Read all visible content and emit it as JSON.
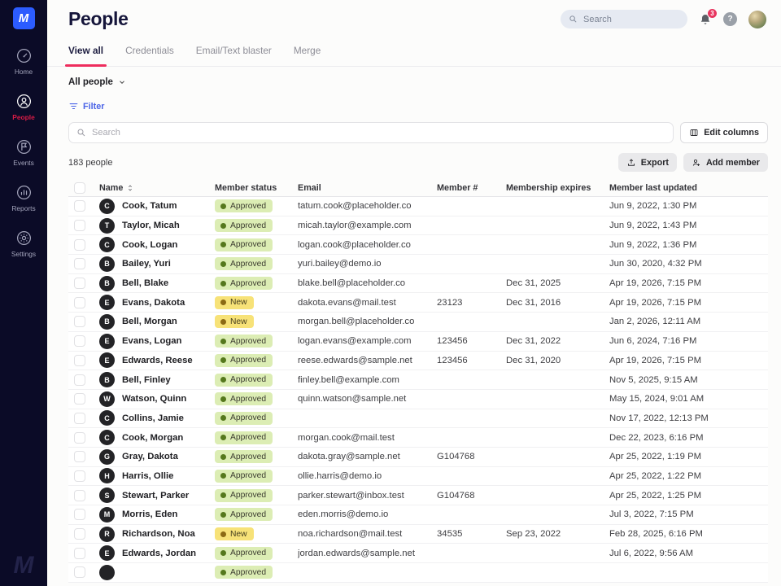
{
  "app": {
    "logo_letter": "M"
  },
  "colors": {
    "sidebar_bg": "#0b0b27",
    "logo_blue": "#2c5cff",
    "accent_red": "#ee2d5d",
    "active_nav_red": "#d91c46",
    "link_blue": "#4a63e7",
    "approved_badge_bg": "#dcedb4",
    "approved_dot": "#55781d",
    "new_badge_bg": "#f7e278",
    "new_dot": "#8c6a14",
    "notification_badge": "#e8355f"
  },
  "sidebar": {
    "items": [
      {
        "label": "Home",
        "icon": "home",
        "active": false
      },
      {
        "label": "People",
        "icon": "people",
        "active": true
      },
      {
        "label": "Events",
        "icon": "events",
        "active": false
      },
      {
        "label": "Reports",
        "icon": "reports",
        "active": false
      },
      {
        "label": "Settings",
        "icon": "settings",
        "active": false
      }
    ]
  },
  "header": {
    "title": "People",
    "search_placeholder": "Search",
    "notification_count": "3"
  },
  "tabs": [
    {
      "label": "View all",
      "active": true
    },
    {
      "label": "Credentials",
      "active": false
    },
    {
      "label": "Email/Text blaster",
      "active": false
    },
    {
      "label": "Merge",
      "active": false
    }
  ],
  "filters": {
    "segment": "All people",
    "filter_label": "Filter",
    "search_placeholder": "Search"
  },
  "toolbar": {
    "count": "183 people",
    "export_label": "Export",
    "add_member_label": "Add member",
    "edit_columns_label": "Edit columns"
  },
  "table": {
    "columns": [
      "Name",
      "Member status",
      "Email",
      "Member #",
      "Membership expires",
      "Member last updated"
    ],
    "rows": [
      {
        "initial": "C",
        "name": "Cook, Tatum",
        "status": "Approved",
        "email": "tatum.cook@placeholder.co",
        "member_no": "",
        "expires": "",
        "updated": "Jun 9, 2022, 1:30 PM"
      },
      {
        "initial": "T",
        "name": "Taylor, Micah",
        "status": "Approved",
        "email": "micah.taylor@example.com",
        "member_no": "",
        "expires": "",
        "updated": "Jun 9, 2022, 1:43 PM"
      },
      {
        "initial": "C",
        "name": "Cook, Logan",
        "status": "Approved",
        "email": "logan.cook@placeholder.co",
        "member_no": "",
        "expires": "",
        "updated": "Jun 9, 2022, 1:36 PM"
      },
      {
        "initial": "B",
        "name": "Bailey, Yuri",
        "status": "Approved",
        "email": "yuri.bailey@demo.io",
        "member_no": "",
        "expires": "",
        "updated": "Jun 30, 2020, 4:32 PM"
      },
      {
        "initial": "B",
        "name": "Bell, Blake",
        "status": "Approved",
        "email": "blake.bell@placeholder.co",
        "member_no": "",
        "expires": "Dec 31, 2025",
        "updated": "Apr 19, 2026, 7:15 PM"
      },
      {
        "initial": "E",
        "name": "Evans, Dakota",
        "status": "New",
        "email": "dakota.evans@mail.test",
        "member_no": "23123",
        "expires": "Dec 31, 2016",
        "updated": "Apr 19, 2026, 7:15 PM"
      },
      {
        "initial": "B",
        "name": "Bell, Morgan",
        "status": "New",
        "email": "morgan.bell@placeholder.co",
        "member_no": "",
        "expires": "",
        "updated": "Jan 2, 2026, 12:11 AM"
      },
      {
        "initial": "E",
        "name": "Evans, Logan",
        "status": "Approved",
        "email": "logan.evans@example.com",
        "member_no": "123456",
        "expires": "Dec 31, 2022",
        "updated": "Jun 6, 2024, 7:16 PM"
      },
      {
        "initial": "E",
        "name": "Edwards, Reese",
        "status": "Approved",
        "email": "reese.edwards@sample.net",
        "member_no": "123456",
        "expires": "Dec 31, 2020",
        "updated": "Apr 19, 2026, 7:15 PM"
      },
      {
        "initial": "B",
        "name": "Bell, Finley",
        "status": "Approved",
        "email": "finley.bell@example.com",
        "member_no": "",
        "expires": "",
        "updated": "Nov 5, 2025, 9:15 AM"
      },
      {
        "initial": "W",
        "name": "Watson, Quinn",
        "status": "Approved",
        "email": "quinn.watson@sample.net",
        "member_no": "",
        "expires": "",
        "updated": "May 15, 2024, 9:01 AM"
      },
      {
        "initial": "C",
        "name": "Collins, Jamie",
        "status": "Approved",
        "email": "",
        "member_no": "",
        "expires": "",
        "updated": "Nov 17, 2022, 12:13 PM"
      },
      {
        "initial": "C",
        "name": "Cook, Morgan",
        "status": "Approved",
        "email": "morgan.cook@mail.test",
        "member_no": "",
        "expires": "",
        "updated": "Dec 22, 2023, 6:16 PM"
      },
      {
        "initial": "G",
        "name": "Gray, Dakota",
        "status": "Approved",
        "email": "dakota.gray@sample.net",
        "member_no": "G104768",
        "expires": "",
        "updated": "Apr 25, 2022, 1:19 PM"
      },
      {
        "initial": "H",
        "name": "Harris, Ollie",
        "status": "Approved",
        "email": "ollie.harris@demo.io",
        "member_no": "",
        "expires": "",
        "updated": "Apr 25, 2022, 1:22 PM"
      },
      {
        "initial": "S",
        "name": "Stewart, Parker",
        "status": "Approved",
        "email": "parker.stewart@inbox.test",
        "member_no": "G104768",
        "expires": "",
        "updated": "Apr 25, 2022, 1:25 PM"
      },
      {
        "initial": "M",
        "name": "Morris, Eden",
        "status": "Approved",
        "email": "eden.morris@demo.io",
        "member_no": "",
        "expires": "",
        "updated": "Jul 3, 2022, 7:15 PM"
      },
      {
        "initial": "R",
        "name": "Richardson, Noa",
        "status": "New",
        "email": "noa.richardson@mail.test",
        "member_no": "34535",
        "expires": "Sep 23, 2022",
        "updated": "Feb 28, 2025, 6:16 PM"
      },
      {
        "initial": "E",
        "name": "Edwards, Jordan",
        "status": "Approved",
        "email": "jordan.edwards@sample.net",
        "member_no": "",
        "expires": "",
        "updated": "Jul 6, 2022, 9:56 AM"
      },
      {
        "initial": "",
        "name": "",
        "status": "Approved",
        "email": "",
        "member_no": "",
        "expires": "",
        "updated": ""
      }
    ]
  }
}
